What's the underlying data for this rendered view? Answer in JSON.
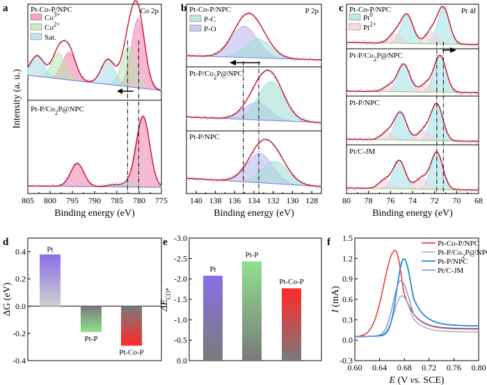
{
  "colors": {
    "envelope": "#c8102e",
    "co3": "#ef7fae",
    "co2": "#b8e3b0",
    "sat": "#a8dcec",
    "pc": "#9fdcd3",
    "po": "#b9b2ee",
    "pt0": "#9ee0e6",
    "pt2": "#f3cfd8",
    "baseline": "#8fd26b",
    "pt_bar_top": "#8a6fe8",
    "ptp_bar_top": "#8fe08f",
    "ptcop_bar_top": "#ff2a2a",
    "bar_bottom": "#7a7a7a",
    "cv_ptcop": "#e8202a",
    "cv_ptpcop": "#9a9a9a",
    "cv_ptp": "#1a8cd8",
    "cv_ptc": "#7a8ad8"
  },
  "chart_data": [
    {
      "panel": "a",
      "type": "line",
      "title": "Co 2p",
      "xlabel": "Binding energy (eV)",
      "ylabel": "Intensity (a. u.)",
      "xlim": [
        805,
        775
      ],
      "x_ticks": [
        "805",
        "800",
        "795",
        "790",
        "785",
        "780",
        "775"
      ],
      "legend": [
        "Co3+",
        "Co2+",
        "Sat."
      ],
      "samples": [
        "Pt-Co-P/NPC",
        "Pt-P/Co2P@NPC"
      ],
      "peaks_top": [
        {
          "component": "Co3+",
          "center": 780.2,
          "height": 0.95
        },
        {
          "component": "Co3+",
          "center": 795.7,
          "height": 0.38
        },
        {
          "component": "Co2+",
          "center": 782.4,
          "height": 0.55
        },
        {
          "component": "Co2+",
          "center": 798.1,
          "height": 0.35
        },
        {
          "component": "Sat.",
          "center": 787.0,
          "height": 0.34
        },
        {
          "component": "Sat.",
          "center": 802.9,
          "height": 0.28
        }
      ],
      "peaks_bottom": [
        {
          "component": "Co3+",
          "center": 779.1,
          "height": 1.0
        },
        {
          "component": "Co3+",
          "center": 793.9,
          "height": 0.33
        },
        {
          "component": "Co2+",
          "center": 781.5,
          "height": 0.06
        },
        {
          "component": "Sat.",
          "center": 785.5,
          "height": 0.03
        }
      ],
      "dash_lines": [
        782.6,
        780.1
      ]
    },
    {
      "panel": "b",
      "type": "line",
      "title": "P 2p",
      "xlabel": "Binding energy (eV)",
      "xlim": [
        141,
        127
      ],
      "x_ticks": [
        "140",
        "138",
        "136",
        "134",
        "132",
        "130",
        "128"
      ],
      "legend": [
        "P-C",
        "P-O"
      ],
      "samples": [
        "Pt-Co-P/NPC",
        "Pt-P/Co2P@NPC",
        "Pt-P/NPC"
      ],
      "peaks": [
        [
          {
            "component": "P-O",
            "center": 135.0,
            "height": 0.75
          },
          {
            "component": "P-C",
            "center": 133.6,
            "height": 0.45
          }
        ],
        [
          {
            "component": "P-O",
            "center": 133.7,
            "height": 0.35
          },
          {
            "component": "P-C",
            "center": 132.2,
            "height": 0.78
          }
        ],
        [
          {
            "component": "P-O",
            "center": 133.4,
            "height": 0.68
          },
          {
            "component": "P-C",
            "center": 131.8,
            "height": 0.52
          }
        ]
      ],
      "dash_lines": [
        135.1,
        133.5
      ]
    },
    {
      "panel": "c",
      "type": "line",
      "title": "Pt 4f",
      "xlabel": "Binding energy (eV)",
      "xlim": [
        80,
        68
      ],
      "x_ticks": [
        "80",
        "78",
        "76",
        "74",
        "72",
        "70",
        "68"
      ],
      "legend": [
        "Pt0",
        "Pt2+"
      ],
      "samples": [
        "Pt-Co-P/NPC",
        "Pt-P/Co2P@NPC",
        "Pt-P/NPC",
        "Pt/C-JM"
      ],
      "peaks": [
        [
          {
            "component": "Pt0",
            "center": 71.2,
            "height": 0.95
          },
          {
            "component": "Pt0",
            "center": 74.5,
            "height": 0.75
          },
          {
            "component": "Pt2+",
            "center": 72.3,
            "height": 0.32
          },
          {
            "component": "Pt2+",
            "center": 75.6,
            "height": 0.25
          }
        ],
        [
          {
            "component": "Pt0",
            "center": 71.5,
            "height": 0.95
          },
          {
            "component": "Pt0",
            "center": 74.8,
            "height": 0.72
          },
          {
            "component": "Pt2+",
            "center": 72.8,
            "height": 0.2
          },
          {
            "component": "Pt2+",
            "center": 76.1,
            "height": 0.15
          }
        ],
        [
          {
            "component": "Pt0",
            "center": 71.8,
            "height": 0.95
          },
          {
            "component": "Pt0",
            "center": 75.1,
            "height": 0.72
          },
          {
            "component": "Pt2+",
            "center": 73.0,
            "height": 0.25
          },
          {
            "component": "Pt2+",
            "center": 76.3,
            "height": 0.2
          }
        ],
        [
          {
            "component": "Pt0",
            "center": 71.8,
            "height": 0.95
          },
          {
            "component": "Pt0",
            "center": 75.2,
            "height": 0.72
          },
          {
            "component": "Pt2+",
            "center": 73.2,
            "height": 0.28
          },
          {
            "component": "Pt2+",
            "center": 76.5,
            "height": 0.22
          }
        ]
      ],
      "dash_lines": [
        71.8,
        71.2
      ]
    },
    {
      "panel": "d",
      "type": "bar",
      "ylabel": "ΔG (eV)",
      "ylim": [
        -0.4,
        0.5
      ],
      "y_ticks": [
        "-0.4",
        "-0.2",
        "0.0",
        "0.2",
        "0.4"
      ],
      "categories": [
        "Pt",
        "Pt-P",
        "Pt-Co-P"
      ],
      "values": [
        0.38,
        -0.19,
        -0.29
      ]
    },
    {
      "panel": "e",
      "type": "bar",
      "ylabel": "ΔE",
      "ylabel_sub": "CO*",
      "ylim": [
        0,
        -3.0
      ],
      "y_ticks": [
        "-3.0",
        "-2.5",
        "-2.0",
        "-1.5",
        "-1.0",
        "-0.5",
        "0.0"
      ],
      "categories": [
        "Pt",
        "Pt-P",
        "Pt-Co-P"
      ],
      "values": [
        -2.08,
        -2.43,
        -1.77
      ]
    },
    {
      "panel": "f",
      "type": "line",
      "xlabel_italic": "E",
      "xlabel_rest": " (V ",
      "xlabel_vs": "vs.",
      "xlabel_end": " SCE)",
      "ylabel_italic": "I",
      "ylabel_rest": " (mA)",
      "xlim": [
        0.6,
        0.8
      ],
      "x_ticks": [
        "0.60",
        "0.64",
        "0.68",
        "0.72",
        "0.76",
        "0.80"
      ],
      "ylim": [
        -0.3,
        1.5
      ],
      "y_ticks": [
        "-0.3",
        "0.0",
        "0.3",
        "0.6",
        "0.9",
        "1.2",
        "1.5"
      ],
      "series": [
        {
          "name": "Pt-Co-P/NPC",
          "peak_x": 0.665,
          "peak_y": 1.33,
          "width_l": 0.018,
          "width_r": 0.012,
          "tail": 0.17
        },
        {
          "name": "Pt-P/Co2P@NPC",
          "peak_x": 0.676,
          "peak_y": 0.66,
          "width_l": 0.012,
          "width_r": 0.014,
          "tail": 0.12
        },
        {
          "name": "Pt-P/NPC",
          "peak_x": 0.679,
          "peak_y": 1.2,
          "width_l": 0.011,
          "width_r": 0.013,
          "tail": 0.21
        },
        {
          "name": "Pt/C-JM",
          "peak_x": 0.674,
          "peak_y": 0.88,
          "width_l": 0.012,
          "width_r": 0.015,
          "tail": 0.16
        }
      ]
    }
  ]
}
